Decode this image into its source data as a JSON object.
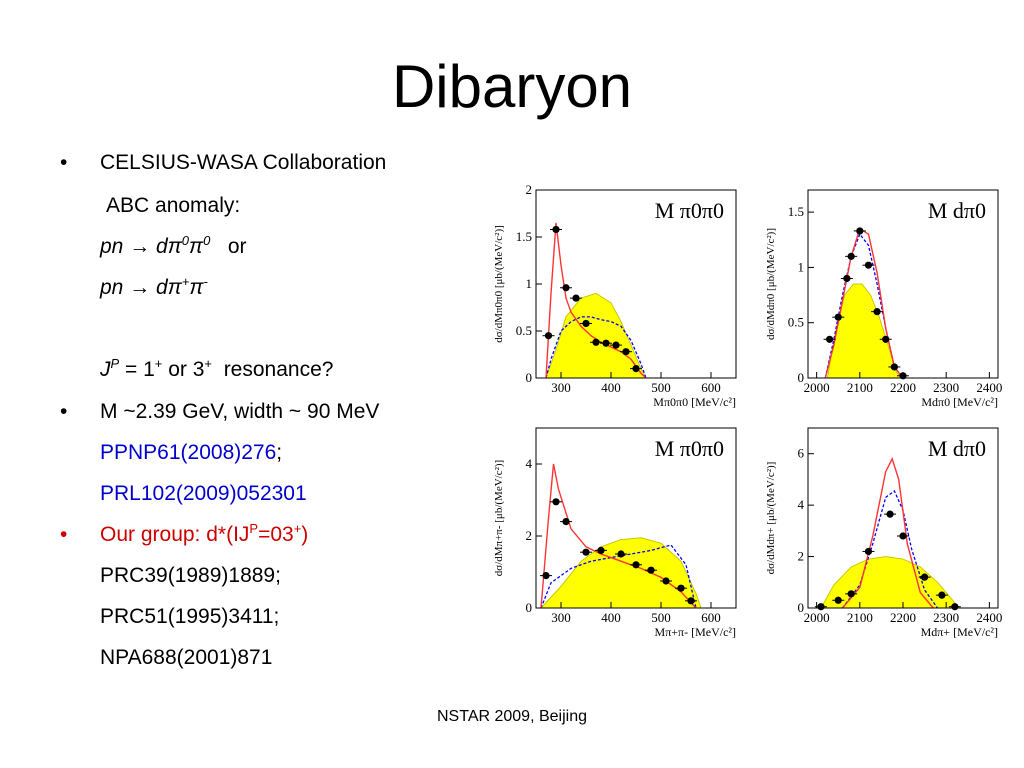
{
  "slide": {
    "title": "Dibaryon",
    "footer": "NSTAR 2009, Beijing"
  },
  "bullets": {
    "b1_text": "CELSIUS-WASA Collaboration",
    "b1_sub1": "ABC anomaly:",
    "b1_react1": {
      "lhs": "pn",
      "arrow": "→",
      "rhs": "dπ",
      "sup1": "0",
      "pi2": "π",
      "sup2": "0",
      "or": "or"
    },
    "b1_react2": {
      "lhs": "pn",
      "arrow": "→",
      "rhs": "dπ",
      "sup1": "+",
      "pi2": "π",
      "sup2": "-"
    },
    "b1_jp": {
      "j": "J",
      "p": "P",
      "eq": "= 1",
      "plus1": "+",
      "or": "or 3",
      "plus2": "+",
      "tail": "resonance?"
    },
    "b2_text": "M ~2.39 GeV, width ~ 90 MeV",
    "b2_ref1": "PPNP61(2008)276",
    "b2_ref1_sep": ";",
    "b2_ref2": "PRL102(2009)052301",
    "b3": {
      "a": "Our group: d*(IJ",
      "p": "P",
      "b": "=03",
      "plus": "+",
      "c": ")"
    },
    "b3_ref1": "PRC39(1989)1889;",
    "b3_ref2": "PRC51(1995)3411;",
    "b3_ref3": "NPA688(2001)871"
  },
  "chart_data": [
    {
      "type": "scatter",
      "title": "M π0π0",
      "xlabel": "Mπ0π0 [MeV/c²]",
      "ylabel": "dσ/dMπ0π0 [μb/(MeV/c²)]",
      "xlim": [
        250,
        650
      ],
      "ylim": [
        0,
        2
      ],
      "xticks": [
        300,
        400,
        500,
        600
      ],
      "yticks": [
        0,
        0.5,
        1,
        1.5,
        2
      ],
      "xtick_labels": [
        "300",
        "400",
        "500",
        "600"
      ],
      "ytick_labels": [
        "0",
        "0.5",
        "1",
        "1.5",
        "2"
      ],
      "data": {
        "x": [
          275,
          290,
          310,
          330,
          350,
          370,
          390,
          410,
          430,
          450
        ],
        "y": [
          0.45,
          1.58,
          0.96,
          0.85,
          0.58,
          0.38,
          0.37,
          0.35,
          0.28,
          0.1
        ]
      },
      "red_curve": {
        "x": [
          270,
          280,
          290,
          300,
          310,
          320,
          340,
          360,
          380,
          400,
          420,
          440,
          460,
          470
        ],
        "y": [
          0,
          0.9,
          1.65,
          1.2,
          0.85,
          0.7,
          0.55,
          0.45,
          0.38,
          0.33,
          0.28,
          0.2,
          0.05,
          0
        ]
      },
      "blue_curve": {
        "x": [
          270,
          280,
          300,
          320,
          340,
          360,
          380,
          400,
          420,
          440,
          460,
          470
        ],
        "y": [
          0,
          0.2,
          0.5,
          0.6,
          0.65,
          0.65,
          0.62,
          0.6,
          0.55,
          0.4,
          0.15,
          0
        ]
      },
      "yellow_area": {
        "x": [
          270,
          290,
          310,
          340,
          370,
          400,
          420,
          440,
          460,
          470
        ],
        "y": [
          0,
          0.3,
          0.65,
          0.85,
          0.9,
          0.8,
          0.6,
          0.35,
          0.1,
          0
        ]
      }
    },
    {
      "type": "scatter",
      "title": "M dπ0",
      "xlabel": "Mdπ0 [MeV/c²]",
      "ylabel": "dσ/dMdπ0 [μb/(MeV/c²)]",
      "xlim": [
        1980,
        2420
      ],
      "ylim": [
        0,
        1.7
      ],
      "xticks": [
        2000,
        2100,
        2200,
        2300,
        2400
      ],
      "yticks": [
        0,
        0.5,
        1,
        1.5
      ],
      "xtick_labels": [
        "2000",
        "2100",
        "2200",
        "2300",
        "2400"
      ],
      "ytick_labels": [
        "0",
        "0.5",
        "1",
        "1.5"
      ],
      "data": {
        "x": [
          2030,
          2050,
          2070,
          2080,
          2100,
          2120,
          2140,
          2160,
          2180,
          2200
        ],
        "y": [
          0.35,
          0.55,
          0.9,
          1.1,
          1.33,
          1.02,
          0.6,
          0.35,
          0.1,
          0.02
        ]
      },
      "red_curve": {
        "x": [
          2020,
          2040,
          2060,
          2080,
          2100,
          2120,
          2140,
          2160,
          2180,
          2200
        ],
        "y": [
          0,
          0.3,
          0.7,
          1.1,
          1.35,
          1.3,
          0.95,
          0.45,
          0.1,
          0
        ]
      },
      "blue_curve": {
        "x": [
          2020,
          2040,
          2060,
          2080,
          2100,
          2120,
          2140,
          2160,
          2180,
          2200
        ],
        "y": [
          0,
          0.35,
          0.75,
          1.1,
          1.3,
          1.2,
          0.85,
          0.45,
          0.1,
          0
        ]
      },
      "yellow_area": {
        "x": [
          2025,
          2045,
          2065,
          2085,
          2105,
          2125,
          2145,
          2165,
          2185,
          2200
        ],
        "y": [
          0,
          0.45,
          0.75,
          0.85,
          0.85,
          0.75,
          0.55,
          0.3,
          0.05,
          0
        ]
      }
    },
    {
      "type": "scatter",
      "title": "M π0π0",
      "xlabel": "Mπ+π- [MeV/c²]",
      "ylabel": "dσ/dMπ+π- [μb/(MeV/c²)]",
      "xlim": [
        250,
        650
      ],
      "ylim": [
        0,
        5
      ],
      "xticks": [
        300,
        400,
        500,
        600
      ],
      "yticks": [
        0,
        2,
        4
      ],
      "xtick_labels": [
        "300",
        "400",
        "500",
        "600"
      ],
      "ytick_labels": [
        "0",
        "2",
        "4"
      ],
      "data": {
        "x": [
          270,
          290,
          310,
          350,
          380,
          420,
          450,
          480,
          510,
          540,
          560
        ],
        "y": [
          0.9,
          2.95,
          2.4,
          1.55,
          1.6,
          1.5,
          1.2,
          1.05,
          0.75,
          0.55,
          0.2
        ]
      },
      "red_curve": {
        "x": [
          260,
          275,
          285,
          295,
          320,
          350,
          380,
          420,
          460,
          500,
          540,
          570
        ],
        "y": [
          0,
          2.5,
          4.0,
          3.3,
          2.2,
          1.7,
          1.5,
          1.3,
          1.1,
          0.85,
          0.45,
          0
        ]
      },
      "blue_curve": {
        "x": [
          260,
          280,
          320,
          360,
          400,
          440,
          480,
          520,
          550,
          570
        ],
        "y": [
          0,
          0.7,
          1.1,
          1.3,
          1.4,
          1.5,
          1.6,
          1.75,
          1.2,
          0
        ]
      },
      "yellow_area": {
        "x": [
          260,
          300,
          340,
          380,
          420,
          460,
          500,
          540,
          570,
          580
        ],
        "y": [
          0,
          0.6,
          1.3,
          1.7,
          1.9,
          1.95,
          1.8,
          1.3,
          0.4,
          0
        ]
      }
    },
    {
      "type": "scatter",
      "title": "M dπ0",
      "xlabel": "Mdπ+ [MeV/c²]",
      "ylabel": "dσ/dMdπ+ [μb/(MeV/c²)]",
      "xlim": [
        1980,
        2420
      ],
      "ylim": [
        0,
        7
      ],
      "xticks": [
        2000,
        2100,
        2200,
        2300,
        2400
      ],
      "yticks": [
        0,
        2,
        4,
        6
      ],
      "xtick_labels": [
        "2000",
        "2100",
        "2200",
        "2300",
        "2400"
      ],
      "ytick_labels": [
        "0",
        "2",
        "4",
        "6"
      ],
      "data": {
        "x": [
          2010,
          2050,
          2080,
          2120,
          2170,
          2200,
          2250,
          2290,
          2320
        ],
        "y": [
          0.05,
          0.3,
          0.55,
          2.2,
          3.65,
          2.8,
          1.2,
          0.5,
          0.05
        ]
      },
      "red_curve": {
        "x": [
          2060,
          2100,
          2130,
          2160,
          2175,
          2190,
          2210,
          2240,
          2270
        ],
        "y": [
          0,
          0.8,
          2.8,
          5.3,
          5.8,
          5.0,
          2.5,
          0.6,
          0
        ]
      },
      "blue_curve": {
        "x": [
          2060,
          2100,
          2130,
          2160,
          2180,
          2200,
          2220,
          2250,
          2280
        ],
        "y": [
          0,
          0.9,
          2.5,
          4.3,
          4.55,
          3.8,
          2.3,
          0.7,
          0
        ]
      },
      "yellow_area": {
        "x": [
          2010,
          2040,
          2080,
          2120,
          2160,
          2200,
          2240,
          2280,
          2310,
          2330
        ],
        "y": [
          0,
          0.9,
          1.6,
          1.9,
          2.0,
          1.9,
          1.6,
          1.0,
          0.4,
          0
        ]
      }
    }
  ],
  "colors": {
    "fill": "#ffff00",
    "fill_edge": "#c8c800",
    "red": "#ff3333",
    "blue": "#0000ff",
    "ref_blue": "#0000cc",
    "alert_red": "#cc0000"
  }
}
